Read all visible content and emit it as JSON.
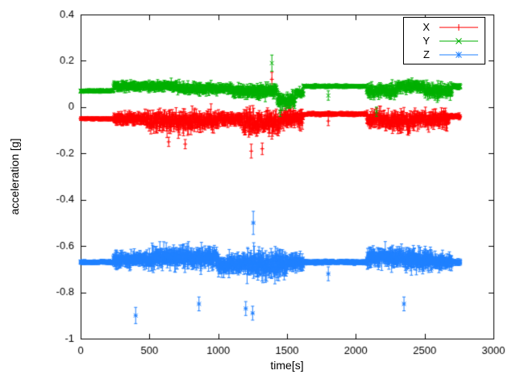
{
  "chart_data": {
    "type": "scatter",
    "title": "",
    "xlabel": "time[s]",
    "ylabel": "acceleration [g]",
    "xlim": [
      0,
      3000
    ],
    "ylim": [
      -1,
      0.4
    ],
    "xticks": [
      0,
      500,
      1000,
      1500,
      2000,
      2500,
      3000
    ],
    "xtick_labels": [
      "0",
      "500",
      "1000",
      "1500",
      "2000",
      "2500",
      "3000"
    ],
    "yticks": [
      -1,
      -0.8,
      -0.6,
      -0.4,
      -0.2,
      0,
      0.2,
      0.4
    ],
    "ytick_labels": [
      "-1",
      "-0.8",
      "-0.6",
      "-0.4",
      "-0.2",
      "0",
      "0.2",
      "0.4"
    ],
    "grid": false,
    "legend": {
      "position": "top-right",
      "border": true
    },
    "axis_color": "#000000",
    "style": "points-with-errorbars",
    "series": [
      {
        "name": "X",
        "color": "#ff0000",
        "marker": "plus",
        "seed": 11,
        "baseline": -0.05,
        "segments": [
          [
            0,
            240,
            -0.05,
            0.008
          ],
          [
            240,
            480,
            -0.05,
            0.04
          ],
          [
            480,
            1000,
            -0.06,
            0.07
          ],
          [
            1000,
            1180,
            -0.05,
            0.05
          ],
          [
            1180,
            1450,
            -0.07,
            0.09
          ],
          [
            1450,
            1620,
            -0.05,
            0.06
          ],
          [
            1620,
            2080,
            -0.03,
            0.01
          ],
          [
            2080,
            2180,
            -0.05,
            0.06
          ],
          [
            2180,
            2430,
            -0.06,
            0.07
          ],
          [
            2430,
            2680,
            -0.05,
            0.06
          ],
          [
            2680,
            2760,
            -0.04,
            0.015
          ]
        ],
        "spikes": [
          {
            "t": 640,
            "y": -0.15,
            "e": 0.02
          },
          {
            "t": 760,
            "y": -0.16,
            "e": 0.02
          },
          {
            "t": 1240,
            "y": -0.19,
            "e": 0.03
          },
          {
            "t": 1320,
            "y": -0.18,
            "e": 0.025
          },
          {
            "t": 1390,
            "y": 0.12,
            "e": 0.03
          },
          {
            "t": 1800,
            "y": -0.06,
            "e": 0.02
          }
        ]
      },
      {
        "name": "Y",
        "color": "#00b000",
        "marker": "cross",
        "seed": 22,
        "baseline": 0.08,
        "segments": [
          [
            0,
            240,
            0.07,
            0.008
          ],
          [
            240,
            700,
            0.09,
            0.03
          ],
          [
            700,
            1100,
            0.08,
            0.035
          ],
          [
            1100,
            1430,
            0.07,
            0.045
          ],
          [
            1430,
            1560,
            0.03,
            0.05
          ],
          [
            1560,
            1620,
            0.06,
            0.03
          ],
          [
            1620,
            2080,
            0.09,
            0.008
          ],
          [
            2080,
            2300,
            0.07,
            0.05
          ],
          [
            2300,
            2500,
            0.09,
            0.04
          ],
          [
            2500,
            2700,
            0.07,
            0.05
          ],
          [
            2700,
            2760,
            0.09,
            0.015
          ]
        ],
        "spikes": [
          {
            "t": 1390,
            "y": 0.19,
            "e": 0.035
          },
          {
            "t": 1450,
            "y": -0.02,
            "e": 0.02
          },
          {
            "t": 2150,
            "y": -0.02,
            "e": 0.02
          },
          {
            "t": 1800,
            "y": 0.05,
            "e": 0.02
          }
        ]
      },
      {
        "name": "Z",
        "color": "#2080ff",
        "marker": "star",
        "seed": 33,
        "baseline": -0.67,
        "segments": [
          [
            0,
            240,
            -0.67,
            0.01
          ],
          [
            240,
            520,
            -0.66,
            0.06
          ],
          [
            520,
            1000,
            -0.65,
            0.08
          ],
          [
            1000,
            1200,
            -0.68,
            0.07
          ],
          [
            1200,
            1500,
            -0.68,
            0.1
          ],
          [
            1500,
            1620,
            -0.67,
            0.06
          ],
          [
            1620,
            2080,
            -0.67,
            0.012
          ],
          [
            2080,
            2350,
            -0.65,
            0.07
          ],
          [
            2350,
            2550,
            -0.66,
            0.08
          ],
          [
            2550,
            2700,
            -0.67,
            0.06
          ],
          [
            2700,
            2760,
            -0.67,
            0.015
          ]
        ],
        "spikes": [
          {
            "t": 400,
            "y": -0.9,
            "e": 0.035
          },
          {
            "t": 860,
            "y": -0.85,
            "e": 0.03
          },
          {
            "t": 1200,
            "y": -0.87,
            "e": 0.03
          },
          {
            "t": 1250,
            "y": -0.89,
            "e": 0.03
          },
          {
            "t": 1255,
            "y": -0.5,
            "e": 0.05
          },
          {
            "t": 1800,
            "y": -0.72,
            "e": 0.03
          },
          {
            "t": 2350,
            "y": -0.85,
            "e": 0.03
          }
        ]
      }
    ]
  }
}
